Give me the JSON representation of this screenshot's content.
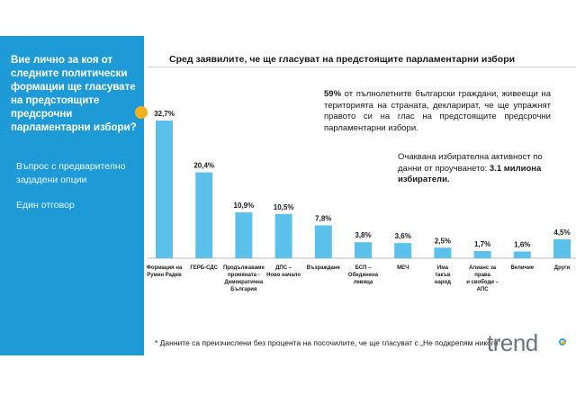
{
  "sidebar": {
    "question": "Вие лично за коя от следните политически формации ще гласувате на предстоящите предсрочни парламентарни избори?",
    "question_type": "Въпрос с предварително зададени опции",
    "answer_type": "Един отговор"
  },
  "header": {
    "chart_title": "Сред заявилите, че ще гласуват на предстоящите парламентарни избори"
  },
  "info": {
    "share_value": "59%",
    "share_text": " от пълнолетните български граждани, живеещи на територията на страната, декларират, че ще упражнят правото си на глас на предстоящите предсрочни парламентарни избори.",
    "turnout_text": "Очаквана избирателна активност по данни от проучването: ",
    "turnout_value": "3.1 милиона избиратели."
  },
  "footnote": "* Данните са преизчислени без процента на посочилите, че ще гласуват с „Не подкрепям никого“",
  "logo": {
    "text": "trend"
  },
  "colors": {
    "bar": "#5bc0ea",
    "sidebar": "#1e9bd7",
    "accent": "#f2b01e"
  },
  "chart_data": {
    "type": "bar",
    "title": "Сред заявилите, че ще гласуват на предстоящите парламентарни избори",
    "categories": [
      [
        "Формация на",
        "Румен Радев"
      ],
      [
        "ГЕРБ-СДС"
      ],
      [
        "Продължаваме",
        "промяната -",
        "Демократична",
        "България"
      ],
      [
        "ДПС –",
        "Ново начало"
      ],
      [
        "Възраждане"
      ],
      [
        "БСП –",
        "Обединена",
        "левица"
      ],
      [
        "МЕЧ"
      ],
      [
        "Има",
        "такъв",
        "народ"
      ],
      [
        "Алианс за",
        "права",
        "и свободи –",
        "АПС"
      ],
      [
        "Величие"
      ],
      [
        "Други"
      ]
    ],
    "values": [
      32.7,
      20.4,
      10.9,
      10.5,
      7.8,
      3.8,
      3.6,
      2.5,
      1.7,
      1.6,
      4.5
    ],
    "labels": [
      "32,7%",
      "20,4%",
      "10,9%",
      "10,5%",
      "7,8%",
      "3,8%",
      "3,6%",
      "2,5%",
      "1,7%",
      "1,6%",
      "4,5%"
    ],
    "xlabel": "",
    "ylabel": "",
    "ylim": [
      0,
      32.7
    ],
    "grid": false,
    "legend": "none"
  }
}
